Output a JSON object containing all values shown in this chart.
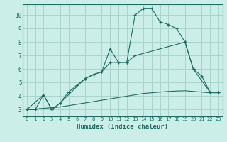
{
  "xlabel": "Humidex (Indice chaleur)",
  "bg_color": "#cceee8",
  "grid_color": "#aad4cc",
  "line_color": "#1a6e64",
  "xlim": [
    -0.5,
    23.5
  ],
  "ylim": [
    2.5,
    10.8
  ],
  "xticks": [
    0,
    1,
    2,
    3,
    4,
    5,
    6,
    7,
    8,
    9,
    10,
    11,
    12,
    13,
    14,
    15,
    16,
    17,
    18,
    19,
    20,
    21,
    22,
    23
  ],
  "yticks": [
    3,
    4,
    5,
    6,
    7,
    8,
    9,
    10
  ],
  "line1_x": [
    0,
    1,
    2,
    3,
    4,
    5,
    6,
    7,
    8,
    9,
    10,
    11,
    12,
    13,
    14,
    15,
    16,
    17,
    18,
    19,
    20,
    21,
    22,
    23
  ],
  "line1_y": [
    3.0,
    3.0,
    4.1,
    3.0,
    3.5,
    4.3,
    4.8,
    5.3,
    5.6,
    5.8,
    7.5,
    6.5,
    6.5,
    10.0,
    10.5,
    10.5,
    9.5,
    9.3,
    9.0,
    8.0,
    6.0,
    5.5,
    4.3,
    4.3
  ],
  "line2_x": [
    0,
    2,
    3,
    4,
    7,
    8,
    9,
    10,
    12,
    13,
    19,
    20,
    22,
    23
  ],
  "line2_y": [
    3.0,
    4.1,
    3.0,
    3.5,
    5.3,
    5.6,
    5.8,
    6.5,
    6.5,
    7.0,
    8.0,
    6.0,
    4.3,
    4.3
  ],
  "line3_x": [
    0,
    1,
    2,
    3,
    4,
    5,
    6,
    7,
    8,
    9,
    10,
    11,
    12,
    13,
    14,
    15,
    16,
    17,
    18,
    19,
    20,
    21,
    22,
    23
  ],
  "line3_y": [
    3.0,
    3.05,
    3.1,
    3.15,
    3.2,
    3.3,
    3.4,
    3.5,
    3.6,
    3.7,
    3.8,
    3.9,
    4.0,
    4.1,
    4.2,
    4.25,
    4.3,
    4.35,
    4.38,
    4.4,
    4.35,
    4.3,
    4.25,
    4.25
  ]
}
